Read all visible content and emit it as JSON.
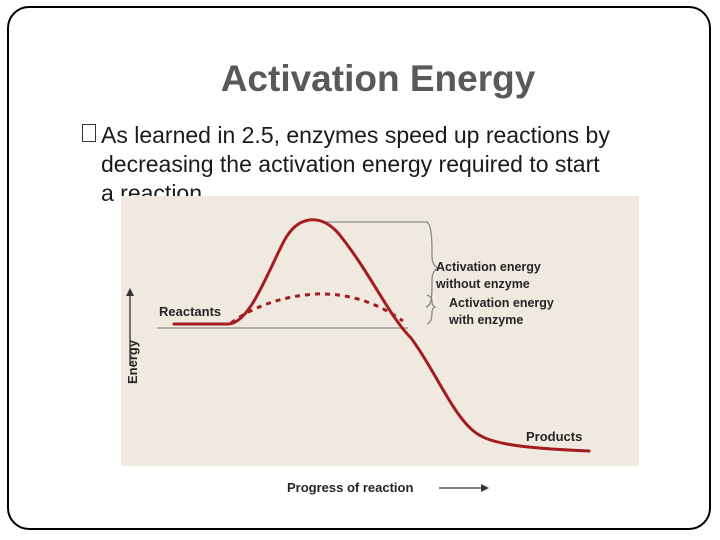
{
  "slide": {
    "title": "Activation Energy",
    "bullet_lines": [
      "As learned in 2.5, enzymes speed up reactions by",
      "decreasing the activation energy required to start",
      "a reaction."
    ],
    "bullet_icon": "square-bullet-icon"
  },
  "figure": {
    "ylabel": "Energy",
    "xlabel": "Progress of reaction",
    "reactants_label": "Reactants",
    "products_label": "Products",
    "without_enzyme_label_1": "Activation energy",
    "without_enzyme_label_2": "without enzyme",
    "with_enzyme_label_1": "Activation energy",
    "with_enzyme_label_2": "with enzyme",
    "colors": {
      "background": "#efe9e0",
      "curve": "#a31d20",
      "text": "#262626"
    }
  }
}
